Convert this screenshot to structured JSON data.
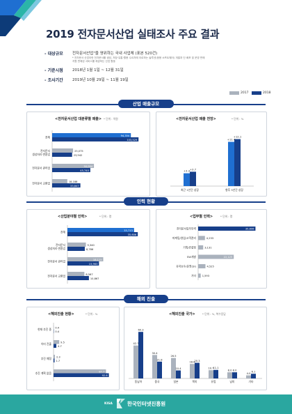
{
  "title": "2019 전자문서산업 실태조사 주요 결과",
  "meta": {
    "target_label": "- 대상규모",
    "target_value": "전자문서산업\"을 영위하는 국내 사업체 (표본 520건)",
    "target_note1": "* 전자문서 산업이란 전자문서를 생성, 저장·유통·활용 수요자에 이르하는 솔루션(응용 소프트웨어) 개발과 단 배포 및 운영 판매",
    "target_note2": "  지원 판매된 서비스를 제공하는 산업 활동",
    "period_label": "- 기준시점",
    "period_value": "2018년 1월 1일 ~ 12월 31일",
    "survey_label": "- 조사기간",
    "survey_value": "2019년 10월 29일 ~ 11월 19일"
  },
  "legend": {
    "y2017": "2017",
    "y2018": "2018"
  },
  "colors": {
    "y2017": "#aab2bd",
    "y2018": "#173f8a",
    "accent_blue": "#1f6fd1",
    "footer": "#2aa7a0"
  },
  "sections": {
    "sales": "산업 매출규모",
    "workforce": "인력 현황",
    "overseas": "해외 진출"
  },
  "footer": {
    "brand": "한국인터넷진흥원",
    "kisa": "KISA"
  },
  "chart_data": [
    {
      "type": "bar",
      "orientation": "horizontal",
      "title": "<전자문서산업 대분류별 매출>",
      "unit": "* 단위 : 억원",
      "categories": [
        "전체",
        "전자문서 생성처리·변환업",
        "전자문서 관리업",
        "전자문서 교환업"
      ],
      "series": [
        {
          "name": "2017",
          "values": [
            94354,
            25075,
            50094,
            18188
          ]
        },
        {
          "name": "2018",
          "values": [
            103529,
            23942,
            45740,
            33847
          ]
        }
      ],
      "labels": {
        "2017": [
          "94,354",
          "25,075",
          "50,094",
          "18,188"
        ],
        "2018": [
          "103,529",
          "23,942",
          "45,740",
          "33,847"
        ]
      },
      "xlim": [
        0,
        110000
      ]
    },
    {
      "type": "bar",
      "title": "<전자문서산업 매출 전망>",
      "unit": "* 단위 : %",
      "categories": [
        "최근 1년간 성장",
        "향후 3년간 성장"
      ],
      "series": [
        {
          "name": "2017",
          "values": [
            3.3,
            11.4
          ]
        },
        {
          "name": "2018",
          "values": [
            3.7,
            12.1
          ]
        }
      ],
      "labels": {
        "2017": [
          "+3.3",
          "+11.4"
        ],
        "2018": [
          "+3.7",
          "+12.1"
        ]
      },
      "ylim": [
        0,
        14
      ]
    },
    {
      "type": "bar",
      "orientation": "horizontal",
      "title": "<산업분야별 인력>",
      "unit": "* 단위 : 명",
      "categories": [
        "전체",
        "전자문서 생성처리·변환업",
        "전자문서 관리업",
        "전자문서 교환업"
      ],
      "series": [
        {
          "name": "2017",
          "values": [
            33713,
            9340,
            18115,
            8567
          ]
        },
        {
          "name": "2018",
          "values": [
            35606,
            8786,
            15963,
            10867
          ]
        }
      ],
      "labels": {
        "2017": [
          "33,713",
          "9,340",
          "18,115",
          "8,567"
        ],
        "2018": [
          "35,606",
          "8,786",
          "15,963",
          "10,867"
        ]
      },
      "xlim": [
        0,
        38000
      ]
    },
    {
      "type": "bar",
      "orientation": "horizontal",
      "title": "<업무별 인력>",
      "unit": "* 단위 : 명",
      "categories": [
        "전자문서업무인력",
        "마케팅/영업/고객관리",
        "기획/컨설팅",
        "SW개발",
        "유지보수/운영(SI)",
        "기타"
      ],
      "series": [
        {
          "name": "2018",
          "values": [
            35606,
            4233,
            3131,
            22125,
            4525,
            1593
          ]
        }
      ],
      "labels": {
        "2018": [
          "35,606",
          "4,233",
          "3,131",
          "22,125",
          "4,525",
          "1,593"
        ]
      },
      "xlim": [
        0,
        38000
      ]
    },
    {
      "type": "bar",
      "orientation": "horizontal",
      "title": "<해외진출 현황>",
      "unit": "* 단위 : %",
      "categories": [
        "현재 추진 중",
        "이미 진출",
        "추진 예정",
        "추진 계획 없음"
      ],
      "series": [
        {
          "name": "2017",
          "values": [
            0.4,
            9.5,
            2.3,
            87.7
          ]
        },
        {
          "name": "2018",
          "values": [
            0.4,
            4.7,
            1.7,
            92.6
          ]
        }
      ],
      "labels": {
        "2017": [
          "0.4",
          "9.5",
          "2.3",
          "87.7"
        ],
        "2018": [
          "0.4",
          "4.7",
          "1.7",
          "92.6"
        ]
      },
      "xlim": [
        0,
        100
      ]
    },
    {
      "type": "bar",
      "title": "<해외진출 국가>",
      "unit": "* 단위 : %, 복수응답",
      "categories": [
        "동남아",
        "중국",
        "일본",
        "북미",
        "유럽",
        "남미",
        "기타"
      ],
      "series": [
        {
          "name": "2017",
          "values": [
            42.7,
            30.4,
            26.5,
            18.8,
            10.7,
            8.0,
            4.0
          ]
        },
        {
          "name": "2018",
          "values": [
            60.3,
            21.8,
            10.4,
            20.3,
            11.1,
            8.0,
            6.1
          ]
        }
      ],
      "labels": {
        "2017": [
          "42.7",
          "30.4",
          "26.5",
          "18.8",
          "10.7",
          "8.0",
          "4.0"
        ],
        "2018": [
          "60.3",
          "21.8",
          "10.4",
          "20.3",
          "11.1",
          "8.0",
          "6.1"
        ]
      },
      "ylim": [
        0,
        65
      ]
    }
  ]
}
